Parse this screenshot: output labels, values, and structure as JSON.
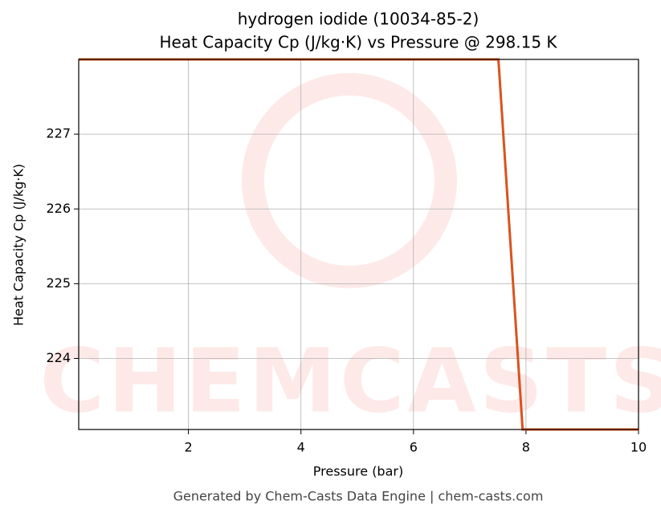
{
  "chart_data": {
    "type": "line",
    "title": "hydrogen iodide (10034-85-2)",
    "subtitle": "Heat Capacity Cp (J/kg·K) vs Pressure @ 298.15 K",
    "x_label": "Pressure (bar)",
    "y_label": "Heat Capacity Cp (J/kg·K)",
    "watermark": "CHEMCASTS",
    "footer": "Generated by Chem-Casts Data Engine | chem-casts.com",
    "x": [
      0.05,
      7.51,
      7.94,
      10
    ],
    "series": [
      {
        "name": "Cp",
        "color": "#d9531e",
        "values": [
          228.0,
          228.0,
          223.05,
          223.05
        ]
      }
    ],
    "xlim": [
      0.05,
      10
    ],
    "xticks": [
      2,
      4,
      6,
      8,
      10
    ],
    "ylim": [
      223.05,
      228.0
    ],
    "yticks": [
      224,
      225,
      226,
      227
    ],
    "grid": true
  }
}
